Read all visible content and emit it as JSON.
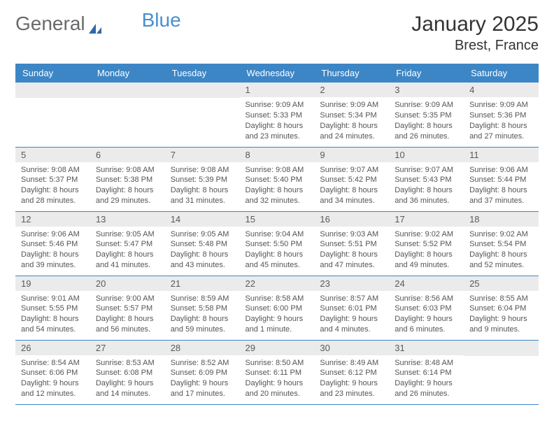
{
  "brand": {
    "part1": "General",
    "part2": "Blue"
  },
  "title": "January 2025",
  "location": "Brest, France",
  "colors": {
    "header_bg": "#3d86c6",
    "header_text": "#ffffff",
    "daynum_bg": "#ebebeb",
    "daynum_text": "#5a5a5a",
    "border": "#3d86c6",
    "body_text": "#555555",
    "brand_gray": "#6a6a6a",
    "brand_blue": "#4a8fd0"
  },
  "weekdays": [
    "Sunday",
    "Monday",
    "Tuesday",
    "Wednesday",
    "Thursday",
    "Friday",
    "Saturday"
  ],
  "weeks": [
    [
      null,
      null,
      null,
      {
        "n": "1",
        "sr": "Sunrise: 9:09 AM",
        "ss": "Sunset: 5:33 PM",
        "dl1": "Daylight: 8 hours",
        "dl2": "and 23 minutes."
      },
      {
        "n": "2",
        "sr": "Sunrise: 9:09 AM",
        "ss": "Sunset: 5:34 PM",
        "dl1": "Daylight: 8 hours",
        "dl2": "and 24 minutes."
      },
      {
        "n": "3",
        "sr": "Sunrise: 9:09 AM",
        "ss": "Sunset: 5:35 PM",
        "dl1": "Daylight: 8 hours",
        "dl2": "and 26 minutes."
      },
      {
        "n": "4",
        "sr": "Sunrise: 9:09 AM",
        "ss": "Sunset: 5:36 PM",
        "dl1": "Daylight: 8 hours",
        "dl2": "and 27 minutes."
      }
    ],
    [
      {
        "n": "5",
        "sr": "Sunrise: 9:08 AM",
        "ss": "Sunset: 5:37 PM",
        "dl1": "Daylight: 8 hours",
        "dl2": "and 28 minutes."
      },
      {
        "n": "6",
        "sr": "Sunrise: 9:08 AM",
        "ss": "Sunset: 5:38 PM",
        "dl1": "Daylight: 8 hours",
        "dl2": "and 29 minutes."
      },
      {
        "n": "7",
        "sr": "Sunrise: 9:08 AM",
        "ss": "Sunset: 5:39 PM",
        "dl1": "Daylight: 8 hours",
        "dl2": "and 31 minutes."
      },
      {
        "n": "8",
        "sr": "Sunrise: 9:08 AM",
        "ss": "Sunset: 5:40 PM",
        "dl1": "Daylight: 8 hours",
        "dl2": "and 32 minutes."
      },
      {
        "n": "9",
        "sr": "Sunrise: 9:07 AM",
        "ss": "Sunset: 5:42 PM",
        "dl1": "Daylight: 8 hours",
        "dl2": "and 34 minutes."
      },
      {
        "n": "10",
        "sr": "Sunrise: 9:07 AM",
        "ss": "Sunset: 5:43 PM",
        "dl1": "Daylight: 8 hours",
        "dl2": "and 36 minutes."
      },
      {
        "n": "11",
        "sr": "Sunrise: 9:06 AM",
        "ss": "Sunset: 5:44 PM",
        "dl1": "Daylight: 8 hours",
        "dl2": "and 37 minutes."
      }
    ],
    [
      {
        "n": "12",
        "sr": "Sunrise: 9:06 AM",
        "ss": "Sunset: 5:46 PM",
        "dl1": "Daylight: 8 hours",
        "dl2": "and 39 minutes."
      },
      {
        "n": "13",
        "sr": "Sunrise: 9:05 AM",
        "ss": "Sunset: 5:47 PM",
        "dl1": "Daylight: 8 hours",
        "dl2": "and 41 minutes."
      },
      {
        "n": "14",
        "sr": "Sunrise: 9:05 AM",
        "ss": "Sunset: 5:48 PM",
        "dl1": "Daylight: 8 hours",
        "dl2": "and 43 minutes."
      },
      {
        "n": "15",
        "sr": "Sunrise: 9:04 AM",
        "ss": "Sunset: 5:50 PM",
        "dl1": "Daylight: 8 hours",
        "dl2": "and 45 minutes."
      },
      {
        "n": "16",
        "sr": "Sunrise: 9:03 AM",
        "ss": "Sunset: 5:51 PM",
        "dl1": "Daylight: 8 hours",
        "dl2": "and 47 minutes."
      },
      {
        "n": "17",
        "sr": "Sunrise: 9:02 AM",
        "ss": "Sunset: 5:52 PM",
        "dl1": "Daylight: 8 hours",
        "dl2": "and 49 minutes."
      },
      {
        "n": "18",
        "sr": "Sunrise: 9:02 AM",
        "ss": "Sunset: 5:54 PM",
        "dl1": "Daylight: 8 hours",
        "dl2": "and 52 minutes."
      }
    ],
    [
      {
        "n": "19",
        "sr": "Sunrise: 9:01 AM",
        "ss": "Sunset: 5:55 PM",
        "dl1": "Daylight: 8 hours",
        "dl2": "and 54 minutes."
      },
      {
        "n": "20",
        "sr": "Sunrise: 9:00 AM",
        "ss": "Sunset: 5:57 PM",
        "dl1": "Daylight: 8 hours",
        "dl2": "and 56 minutes."
      },
      {
        "n": "21",
        "sr": "Sunrise: 8:59 AM",
        "ss": "Sunset: 5:58 PM",
        "dl1": "Daylight: 8 hours",
        "dl2": "and 59 minutes."
      },
      {
        "n": "22",
        "sr": "Sunrise: 8:58 AM",
        "ss": "Sunset: 6:00 PM",
        "dl1": "Daylight: 9 hours",
        "dl2": "and 1 minute."
      },
      {
        "n": "23",
        "sr": "Sunrise: 8:57 AM",
        "ss": "Sunset: 6:01 PM",
        "dl1": "Daylight: 9 hours",
        "dl2": "and 4 minutes."
      },
      {
        "n": "24",
        "sr": "Sunrise: 8:56 AM",
        "ss": "Sunset: 6:03 PM",
        "dl1": "Daylight: 9 hours",
        "dl2": "and 6 minutes."
      },
      {
        "n": "25",
        "sr": "Sunrise: 8:55 AM",
        "ss": "Sunset: 6:04 PM",
        "dl1": "Daylight: 9 hours",
        "dl2": "and 9 minutes."
      }
    ],
    [
      {
        "n": "26",
        "sr": "Sunrise: 8:54 AM",
        "ss": "Sunset: 6:06 PM",
        "dl1": "Daylight: 9 hours",
        "dl2": "and 12 minutes."
      },
      {
        "n": "27",
        "sr": "Sunrise: 8:53 AM",
        "ss": "Sunset: 6:08 PM",
        "dl1": "Daylight: 9 hours",
        "dl2": "and 14 minutes."
      },
      {
        "n": "28",
        "sr": "Sunrise: 8:52 AM",
        "ss": "Sunset: 6:09 PM",
        "dl1": "Daylight: 9 hours",
        "dl2": "and 17 minutes."
      },
      {
        "n": "29",
        "sr": "Sunrise: 8:50 AM",
        "ss": "Sunset: 6:11 PM",
        "dl1": "Daylight: 9 hours",
        "dl2": "and 20 minutes."
      },
      {
        "n": "30",
        "sr": "Sunrise: 8:49 AM",
        "ss": "Sunset: 6:12 PM",
        "dl1": "Daylight: 9 hours",
        "dl2": "and 23 minutes."
      },
      {
        "n": "31",
        "sr": "Sunrise: 8:48 AM",
        "ss": "Sunset: 6:14 PM",
        "dl1": "Daylight: 9 hours",
        "dl2": "and 26 minutes."
      },
      null
    ]
  ]
}
